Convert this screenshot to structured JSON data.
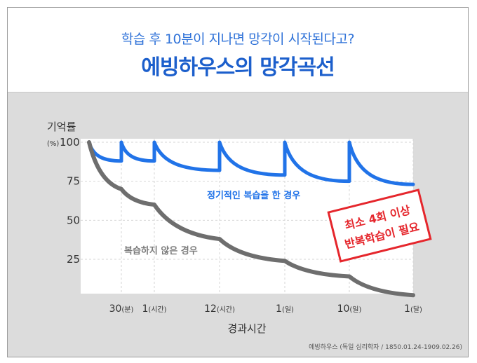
{
  "header": {
    "subtitle": "학습 후 10분이 지나면 망각이 시작된다고?",
    "title": "에빙하우스의 망각곡선"
  },
  "chart_data": {
    "type": "line",
    "ylabel": "기억률",
    "ylabel_unit": "(%)",
    "ylim": [
      0,
      100
    ],
    "yticks": [
      100,
      75,
      50,
      25
    ],
    "xlabel": "경과시간",
    "xticks": [
      {
        "main": "30",
        "unit": "(분)"
      },
      {
        "main": "1",
        "unit": "(시간)"
      },
      {
        "main": "12",
        "unit": "(시간)"
      },
      {
        "main": "1",
        "unit": "(일)"
      },
      {
        "main": "10",
        "unit": "(일)"
      },
      {
        "main": "1",
        "unit": "(달)"
      }
    ],
    "series": [
      {
        "name": "정기적인 복습을 한 경우",
        "color": "#2173e8",
        "segments": [
          {
            "from": 0,
            "to": 1,
            "start": 100,
            "end": 88
          },
          {
            "from": 1,
            "to": 2,
            "start": 100,
            "end": 88
          },
          {
            "from": 2,
            "to": 3,
            "start": 100,
            "end": 82
          },
          {
            "from": 3,
            "to": 4,
            "start": 100,
            "end": 79
          },
          {
            "from": 4,
            "to": 5,
            "start": 100,
            "end": 75
          },
          {
            "from": 5,
            "to": 6,
            "start": 100,
            "end": 73
          }
        ]
      },
      {
        "name": "복습하지 않은 경우",
        "color": "#6e6e6e",
        "x": [
          0,
          1,
          2,
          3,
          4,
          5,
          6
        ],
        "values": [
          100,
          70,
          60,
          38,
          24,
          14,
          2
        ]
      }
    ],
    "grid": true,
    "annotation": {
      "line1": "최소 4회 이상",
      "line2": "반복학습이 필요"
    },
    "source": "에빙하우스 (독일 심리학자 / 1850.01.24-1909.02.26)"
  }
}
